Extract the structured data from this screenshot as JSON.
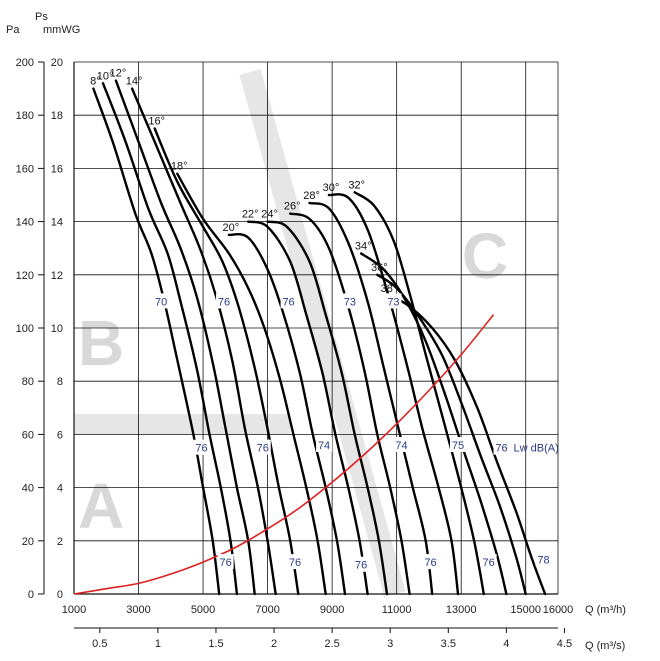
{
  "chart_data": {
    "type": "line",
    "title": "",
    "axes": {
      "pa_unit": "Pa",
      "ps_label": "Ps",
      "mmwg_unit": "mmWG",
      "q_label": "Q",
      "q_m3h_unit": "(m³/h)",
      "q_m3s_unit": "(m³/s)",
      "pa_ticks": [
        "0",
        "20",
        "40",
        "60",
        "80",
        "100",
        "120",
        "140",
        "160",
        "180",
        "200"
      ],
      "mmwg_ticks": [
        "0",
        "2",
        "4",
        "6",
        "8",
        "10",
        "12",
        "14",
        "16",
        "18",
        "20"
      ],
      "q_m3h_ticks": [
        "1000",
        "3000",
        "5000",
        "7000",
        "9000",
        "11000",
        "13000",
        "15000",
        "16000"
      ],
      "q_m3s_ticks": [
        "0.5",
        "1",
        "1.5",
        "2",
        "2.5",
        "3",
        "3.5",
        "4",
        "4.5"
      ],
      "xlim_m3h": [
        1000,
        16000
      ],
      "ylim_pa": [
        0,
        200
      ]
    },
    "grid": true,
    "blade_angle_curves": [
      {
        "angle": "8°",
        "points": [
          [
            1600,
            190
          ],
          [
            2200,
            170
          ],
          [
            2900,
            143
          ],
          [
            3400,
            128
          ],
          [
            3800,
            110
          ],
          [
            4200,
            88
          ],
          [
            4700,
            60
          ],
          [
            5000,
            40
          ],
          [
            5300,
            20
          ],
          [
            5500,
            0
          ]
        ]
      },
      {
        "angle": "10°",
        "points": [
          [
            1900,
            192
          ],
          [
            2600,
            170
          ],
          [
            3300,
            145
          ],
          [
            3900,
            128
          ],
          [
            4300,
            110
          ],
          [
            4800,
            85
          ],
          [
            5200,
            60
          ],
          [
            5550,
            40
          ],
          [
            5850,
            20
          ],
          [
            6050,
            0
          ]
        ]
      },
      {
        "angle": "12°",
        "points": [
          [
            2300,
            193
          ],
          [
            3000,
            170
          ],
          [
            3700,
            147
          ],
          [
            4300,
            130
          ],
          [
            4800,
            112
          ],
          [
            5300,
            87
          ],
          [
            5700,
            62
          ],
          [
            6050,
            40
          ],
          [
            6400,
            20
          ],
          [
            6600,
            0
          ]
        ]
      },
      {
        "angle": "14°",
        "points": [
          [
            2800,
            190
          ],
          [
            3500,
            170
          ],
          [
            4300,
            147
          ],
          [
            4900,
            130
          ],
          [
            5400,
            112
          ],
          [
            5900,
            88
          ],
          [
            6300,
            62
          ],
          [
            6700,
            40
          ],
          [
            7000,
            20
          ],
          [
            7250,
            0
          ]
        ]
      },
      {
        "angle": "16°",
        "points": [
          [
            3500,
            175
          ],
          [
            4200,
            155
          ],
          [
            5000,
            138
          ],
          [
            5600,
            125
          ],
          [
            6100,
            108
          ],
          [
            6600,
            85
          ],
          [
            7000,
            62
          ],
          [
            7350,
            40
          ],
          [
            7700,
            20
          ],
          [
            7950,
            0
          ]
        ]
      },
      {
        "angle": "18°",
        "points": [
          [
            4200,
            158
          ],
          [
            5000,
            141
          ],
          [
            5800,
            128
          ],
          [
            6400,
            115
          ],
          [
            6900,
            100
          ],
          [
            7400,
            80
          ],
          [
            7800,
            60
          ],
          [
            8200,
            40
          ],
          [
            8550,
            20
          ],
          [
            8800,
            0
          ]
        ]
      },
      {
        "angle": "20°",
        "points": [
          [
            5800,
            135
          ],
          [
            6400,
            134
          ],
          [
            7000,
            122
          ],
          [
            7500,
            105
          ],
          [
            8000,
            83
          ],
          [
            8400,
            60
          ],
          [
            8800,
            40
          ],
          [
            9150,
            20
          ],
          [
            9400,
            0
          ]
        ]
      },
      {
        "angle": "22°",
        "points": [
          [
            6400,
            140
          ],
          [
            7000,
            138
          ],
          [
            7700,
            125
          ],
          [
            8200,
            105
          ],
          [
            8700,
            83
          ],
          [
            9100,
            60
          ],
          [
            9500,
            40
          ],
          [
            9850,
            20
          ],
          [
            10100,
            0
          ]
        ]
      },
      {
        "angle": "24°",
        "points": [
          [
            7000,
            140
          ],
          [
            7600,
            138
          ],
          [
            8300,
            125
          ],
          [
            8800,
            105
          ],
          [
            9300,
            83
          ],
          [
            9700,
            60
          ],
          [
            10100,
            40
          ],
          [
            10450,
            20
          ],
          [
            10700,
            0
          ]
        ]
      },
      {
        "angle": "26°",
        "points": [
          [
            7700,
            143
          ],
          [
            8300,
            141
          ],
          [
            8900,
            130
          ],
          [
            9500,
            108
          ],
          [
            10000,
            84
          ],
          [
            10400,
            60
          ],
          [
            10800,
            40
          ],
          [
            11150,
            20
          ],
          [
            11400,
            0
          ]
        ]
      },
      {
        "angle": "28°",
        "points": [
          [
            8300,
            147
          ],
          [
            8900,
            145
          ],
          [
            9500,
            132
          ],
          [
            10100,
            110
          ],
          [
            10600,
            85
          ],
          [
            11100,
            60
          ],
          [
            11500,
            40
          ],
          [
            11900,
            20
          ],
          [
            12100,
            0
          ]
        ]
      },
      {
        "angle": "30°",
        "points": [
          [
            8900,
            150
          ],
          [
            9500,
            149
          ],
          [
            10100,
            137
          ],
          [
            10700,
            114
          ],
          [
            11300,
            87
          ],
          [
            11800,
            62
          ],
          [
            12300,
            40
          ],
          [
            12700,
            20
          ],
          [
            12900,
            0
          ]
        ]
      },
      {
        "angle": "32°",
        "points": [
          [
            9700,
            151
          ],
          [
            10300,
            146
          ],
          [
            10900,
            133
          ],
          [
            11400,
            113
          ],
          [
            11900,
            90
          ],
          [
            12500,
            63
          ],
          [
            13000,
            40
          ],
          [
            13400,
            20
          ],
          [
            13700,
            0
          ]
        ]
      },
      {
        "angle": "34°",
        "points": [
          [
            9900,
            128
          ],
          [
            10600,
            122
          ],
          [
            11300,
            110
          ],
          [
            11900,
            95
          ],
          [
            12500,
            75
          ],
          [
            13100,
            53
          ],
          [
            13600,
            35
          ],
          [
            14100,
            15
          ],
          [
            14400,
            0
          ]
        ]
      },
      {
        "angle": "36°",
        "points": [
          [
            10400,
            120
          ],
          [
            11000,
            115
          ],
          [
            11700,
            104
          ],
          [
            12400,
            90
          ],
          [
            13000,
            72
          ],
          [
            13600,
            52
          ],
          [
            14200,
            33
          ],
          [
            14700,
            14
          ],
          [
            15000,
            0
          ]
        ]
      },
      {
        "angle": "38°",
        "points": [
          [
            10700,
            112
          ],
          [
            11300,
            109
          ],
          [
            12100,
            100
          ],
          [
            12800,
            88
          ],
          [
            13500,
            70
          ],
          [
            14100,
            50
          ],
          [
            14700,
            31
          ],
          [
            15200,
            13
          ],
          [
            15600,
            0
          ]
        ]
      }
    ],
    "system_curve": {
      "color": "#e02020",
      "points": [
        [
          1000,
          0
        ],
        [
          2000,
          2
        ],
        [
          3000,
          4
        ],
        [
          4000,
          7.5
        ],
        [
          5000,
          12
        ],
        [
          6000,
          17.5
        ],
        [
          7000,
          24.5
        ],
        [
          8000,
          32.5
        ],
        [
          9000,
          42
        ],
        [
          10000,
          52.5
        ],
        [
          11000,
          64
        ],
        [
          12000,
          76.5
        ],
        [
          13000,
          90
        ],
        [
          14000,
          105
        ]
      ]
    },
    "sound_labels": {
      "unit_label": "Lw dB(A)",
      "items": [
        {
          "text": "70",
          "q": 3700,
          "pa": 110
        },
        {
          "text": "76",
          "q": 5650,
          "pa": 110
        },
        {
          "text": "76",
          "q": 7650,
          "pa": 110
        },
        {
          "text": "73",
          "q": 9550,
          "pa": 110
        },
        {
          "text": "73",
          "q": 10900,
          "pa": 110
        },
        {
          "text": "76",
          "q": 4950,
          "pa": 55
        },
        {
          "text": "76",
          "q": 6850,
          "pa": 55
        },
        {
          "text": "74",
          "q": 8750,
          "pa": 56
        },
        {
          "text": "74",
          "q": 11150,
          "pa": 56
        },
        {
          "text": "75",
          "q": 12900,
          "pa": 56
        },
        {
          "text": "76",
          "q": 14250,
          "pa": 55
        },
        {
          "text": "76",
          "q": 5700,
          "pa": 12
        },
        {
          "text": "76",
          "q": 7850,
          "pa": 12
        },
        {
          "text": "76",
          "q": 9900,
          "pa": 11
        },
        {
          "text": "76",
          "q": 12050,
          "pa": 12
        },
        {
          "text": "76",
          "q": 13850,
          "pa": 12
        },
        {
          "text": "78",
          "q": 15550,
          "pa": 13
        }
      ]
    },
    "zone_labels": [
      "A",
      "B",
      "C"
    ]
  }
}
